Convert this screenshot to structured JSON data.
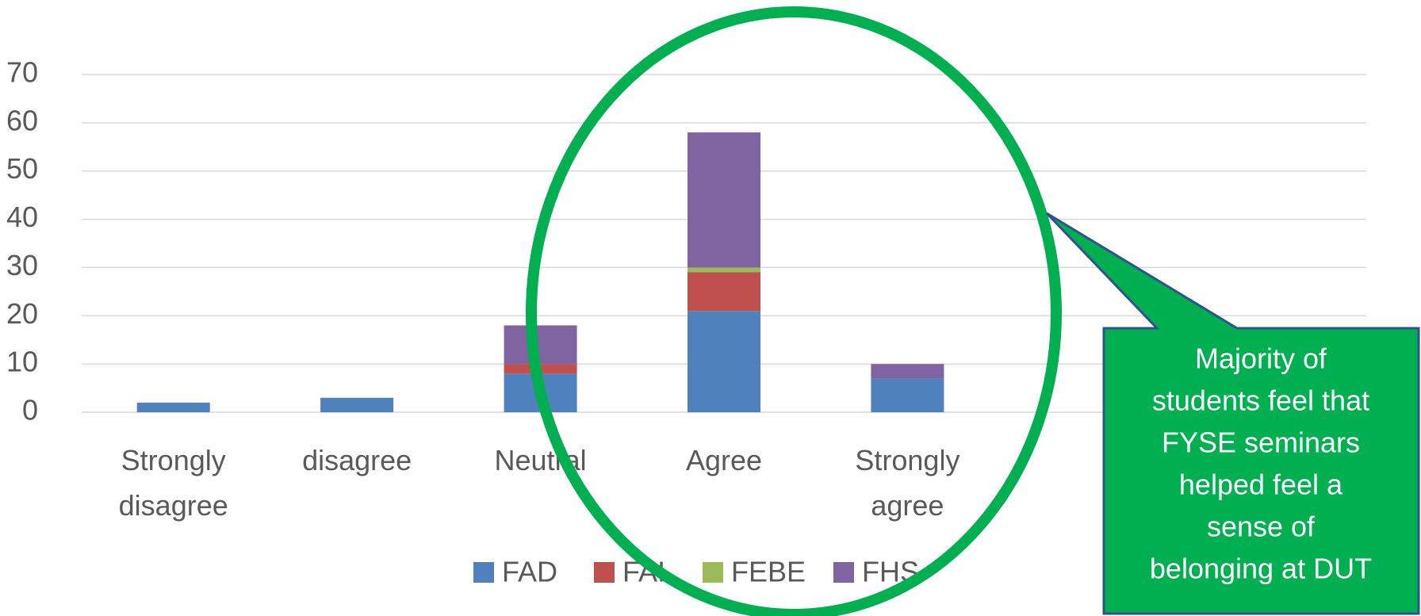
{
  "chart_data": {
    "type": "bar",
    "stacked": true,
    "categories": [
      "Strongly disagree",
      "disagree",
      "Neutral",
      "Agree",
      "Strongly agree",
      null,
      null
    ],
    "series": [
      {
        "name": "FAD",
        "color": "#4f81bd",
        "values": [
          2,
          3,
          8,
          21,
          7,
          null,
          null
        ]
      },
      {
        "name": "FAI",
        "color": "#c0504d",
        "values": [
          0,
          0,
          2,
          8,
          0,
          null,
          null
        ]
      },
      {
        "name": "FEBE",
        "color": "#9bbb59",
        "values": [
          0,
          0,
          0,
          1,
          0,
          null,
          null
        ]
      },
      {
        "name": "FHS",
        "color": "#8064a2",
        "values": [
          0,
          0,
          8,
          28,
          3,
          null,
          null
        ]
      }
    ],
    "ylim": [
      0,
      70
    ],
    "yticks": [
      0,
      10,
      20,
      30,
      40,
      50,
      60,
      70
    ],
    "grid": true,
    "legend": "bottom",
    "annotation": [
      "Majority of",
      "students feel that",
      "FYSE seminars",
      "helped feel a",
      "sense of",
      "belonging at DUT"
    ]
  }
}
